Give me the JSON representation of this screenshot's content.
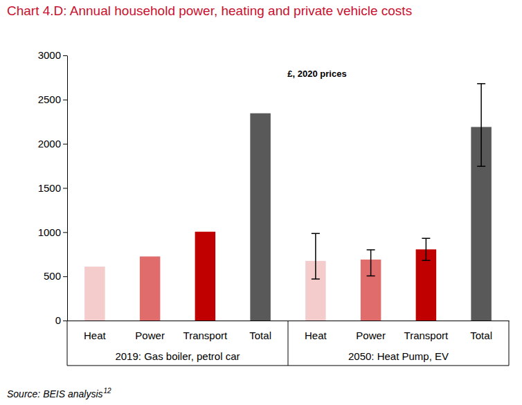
{
  "chart_data": {
    "type": "bar",
    "title": "Chart 4.D: Annual household power, heating and private vehicle costs",
    "annotation": "£, 2020 prices",
    "source": "Source: BEIS analysis",
    "source_note": "12",
    "categories": [
      "Heat",
      "Power",
      "Transport",
      "Total",
      "Heat",
      "Power",
      "Transport",
      "Total"
    ],
    "groups": [
      "2019: Gas boiler, petrol car",
      "2050: Heat Pump, EV"
    ],
    "values": [
      610,
      725,
      1005,
      2345,
      675,
      690,
      805,
      2190
    ],
    "error_low": [
      null,
      null,
      null,
      null,
      470,
      505,
      680,
      1745
    ],
    "error_high": [
      null,
      null,
      null,
      null,
      985,
      800,
      930,
      2680
    ],
    "colors": [
      "#f4cccc",
      "#e06c6c",
      "#c00000",
      "#595959",
      "#f4cccc",
      "#e06c6c",
      "#c00000",
      "#595959"
    ],
    "ylim": [
      0,
      3000
    ],
    "yticks": [
      0,
      500,
      1000,
      1500,
      2000,
      2500,
      3000
    ],
    "grid": false
  }
}
